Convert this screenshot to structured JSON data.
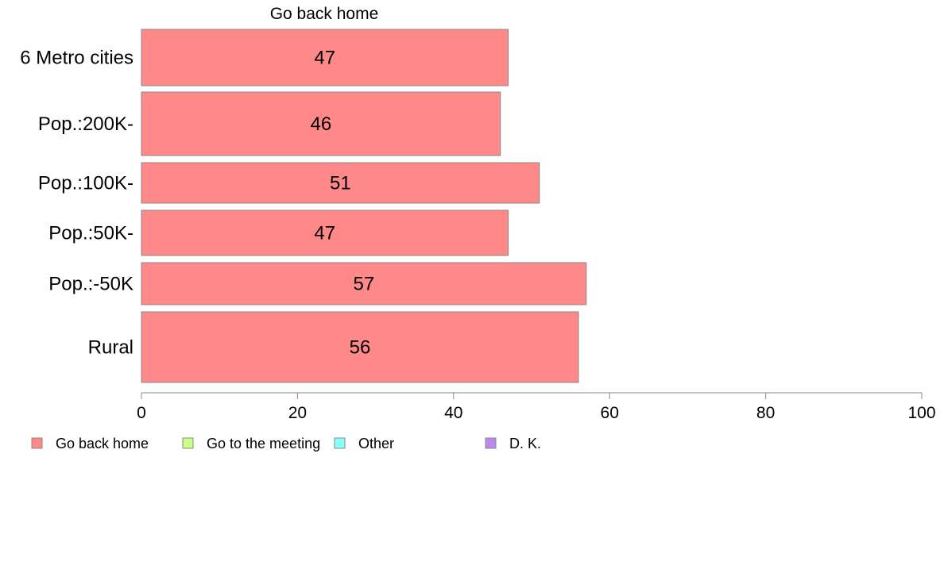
{
  "chart_data": {
    "type": "bar",
    "orientation": "horizontal",
    "title": "Go back home",
    "categories": [
      "6 Metro cities",
      "Pop.:200K-",
      "Pop.:100K-",
      "Pop.:50K-",
      "Pop.:-50K",
      "Rural"
    ],
    "series": [
      {
        "name": "Go back home",
        "values": [
          47,
          46,
          51,
          47,
          57,
          56
        ],
        "color": "#ff8888"
      }
    ],
    "xlim": [
      0,
      100
    ],
    "xticks": [
      0,
      20,
      40,
      60,
      80,
      100
    ],
    "grid": false,
    "legend": {
      "placement": "bottom-left",
      "entries": [
        {
          "label": "Go back home",
          "color": "#ff8888"
        },
        {
          "label": "Go to the meeting",
          "color": "#ccff88"
        },
        {
          "label": "Other",
          "color": "#88ffff"
        },
        {
          "label": "D. K.",
          "color": "#bb88ee"
        }
      ]
    }
  }
}
